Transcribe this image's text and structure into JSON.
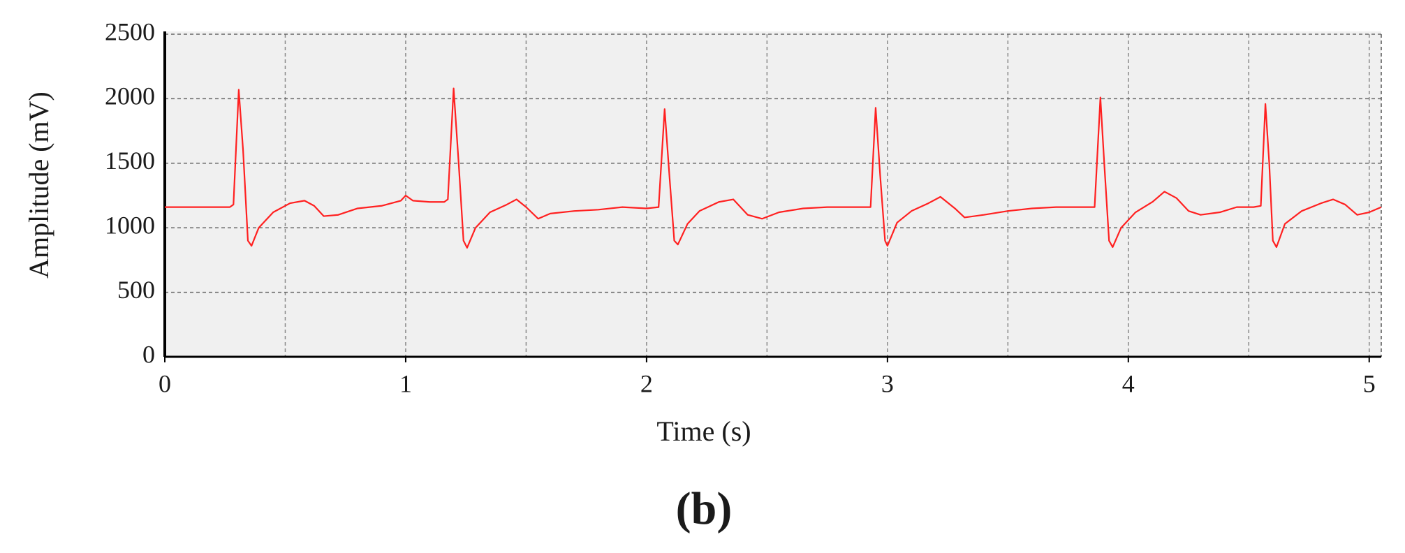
{
  "chart_data": {
    "type": "line",
    "x_label": "Time (s)",
    "y_label": "Amplitude (mV)",
    "caption": "(b)",
    "color": "#ff2020",
    "background": "#f0f0f0",
    "grid": true,
    "xlim": [
      0,
      5.05
    ],
    "ylim": [
      0,
      2500
    ],
    "xticks": [
      0,
      1,
      2,
      3,
      4,
      5
    ],
    "yticks": [
      0,
      500,
      1000,
      1500,
      2000,
      2500
    ],
    "xgrid": [
      0.5,
      1,
      1.5,
      2,
      2.5,
      3,
      3.5,
      4,
      4.5,
      5
    ],
    "x": [
      0,
      0.27,
      0.285,
      0.307,
      0.325,
      0.345,
      0.36,
      0.39,
      0.45,
      0.52,
      0.58,
      0.62,
      0.66,
      0.72,
      0.8,
      0.9,
      0.98,
      1.0,
      1.03,
      1.1,
      1.16,
      1.175,
      1.199,
      1.22,
      1.24,
      1.255,
      1.29,
      1.35,
      1.42,
      1.46,
      1.5,
      1.55,
      1.6,
      1.7,
      1.8,
      1.9,
      2.0,
      2.05,
      2.075,
      2.095,
      2.115,
      2.13,
      2.17,
      2.22,
      2.3,
      2.36,
      2.42,
      2.48,
      2.55,
      2.65,
      2.75,
      2.85,
      2.93,
      2.951,
      2.97,
      2.99,
      3.0,
      3.04,
      3.1,
      3.17,
      3.22,
      3.28,
      3.32,
      3.4,
      3.5,
      3.6,
      3.7,
      3.8,
      3.86,
      3.884,
      3.9,
      3.92,
      3.935,
      3.97,
      4.03,
      4.1,
      4.15,
      4.2,
      4.25,
      4.3,
      4.38,
      4.45,
      4.52,
      4.55,
      4.569,
      4.585,
      4.6,
      4.615,
      4.65,
      4.72,
      4.8,
      4.85,
      4.9,
      4.95,
      5.0,
      5.05
    ],
    "values": [
      1160,
      1160,
      1180,
      2070,
      1600,
      900,
      860,
      1000,
      1120,
      1190,
      1210,
      1170,
      1090,
      1100,
      1150,
      1170,
      1210,
      1250,
      1210,
      1200,
      1200,
      1220,
      2080,
      1500,
      900,
      845,
      1000,
      1120,
      1180,
      1220,
      1160,
      1070,
      1110,
      1130,
      1140,
      1160,
      1150,
      1160,
      1920,
      1400,
      900,
      870,
      1030,
      1130,
      1200,
      1220,
      1100,
      1070,
      1120,
      1150,
      1160,
      1160,
      1160,
      1930,
      1400,
      900,
      860,
      1040,
      1130,
      1190,
      1240,
      1150,
      1080,
      1100,
      1130,
      1150,
      1160,
      1160,
      1160,
      2010,
      1500,
      900,
      850,
      1000,
      1120,
      1200,
      1280,
      1230,
      1130,
      1100,
      1120,
      1160,
      1160,
      1170,
      1960,
      1500,
      900,
      850,
      1030,
      1130,
      1190,
      1220,
      1180,
      1100,
      1120,
      1160
    ]
  }
}
